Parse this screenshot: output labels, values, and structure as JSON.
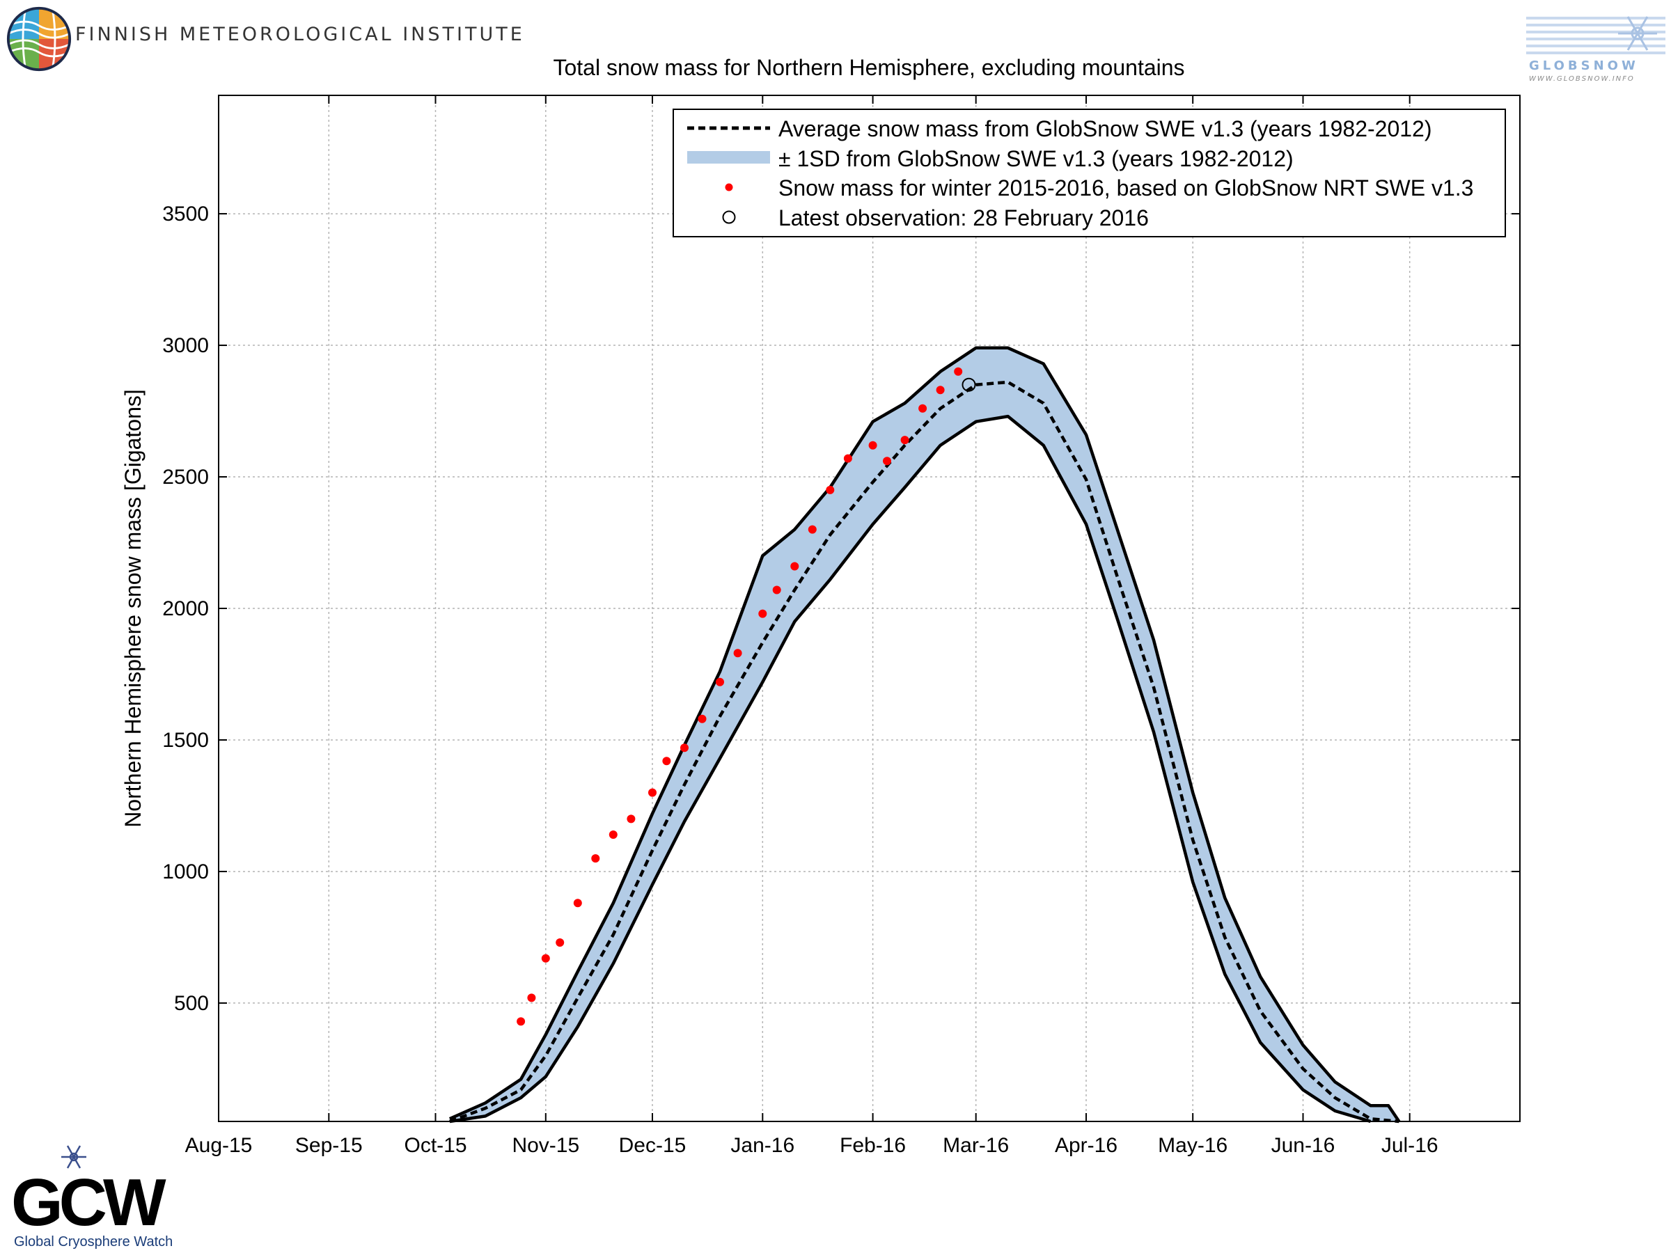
{
  "header": {
    "institute_name": "FINNISH METEOROLOGICAL INSTITUTE",
    "globsnow_wordmark": "GLOBSNOW",
    "globsnow_url": "WWW.GLOBSNOW.INFO",
    "gcw_wordmark": "GCW",
    "gcw_tagline": "Global Cryosphere Watch"
  },
  "colors": {
    "band_fill": "#b3cce6",
    "mean_line": "#000000",
    "obs_points": "#ff0000",
    "grid": "#b4b4b4"
  },
  "chart_data": {
    "type": "line",
    "title": "Total snow mass for Northern Hemisphere, excluding mountains",
    "ylabel": "Northern Hemisphere snow mass [Gigatons]",
    "xlabel": "",
    "x_ticks": [
      "Aug-15",
      "Sep-15",
      "Oct-15",
      "Nov-15",
      "Dec-15",
      "Jan-16",
      "Feb-16",
      "Mar-16",
      "Apr-16",
      "May-16",
      "Jun-16",
      "Jul-16"
    ],
    "xlim": [
      "2015-08-01",
      "2016-08-01"
    ],
    "ylim": [
      50,
      3950
    ],
    "y_ticks": [
      500,
      1000,
      1500,
      2000,
      2500,
      3000,
      3500
    ],
    "grid": true,
    "legend_position": "top-right",
    "legend": {
      "mean": "Average snow mass from GlobSnow SWE v1.3 (years 1982-2012)",
      "band": "± 1SD from GlobSnow SWE v1.3 (years 1982-2012)",
      "obs": "Snow mass for winter 2015-2016, based on GlobSnow NRT SWE v1.3",
      "latest": "Latest observation: 28 February 2016"
    },
    "series": [
      {
        "name": "Average snow mass from GlobSnow SWE v1.3 (years 1982-2012)",
        "style": "dashed",
        "points": [
          [
            "2015-10-05",
            50
          ],
          [
            "2015-10-15",
            100
          ],
          [
            "2015-10-25",
            170
          ],
          [
            "2015-11-01",
            300
          ],
          [
            "2015-11-10",
            520
          ],
          [
            "2015-11-20",
            760
          ],
          [
            "2015-12-01",
            1080
          ],
          [
            "2015-12-10",
            1330
          ],
          [
            "2015-12-20",
            1590
          ],
          [
            "2016-01-01",
            1870
          ],
          [
            "2016-01-10",
            2070
          ],
          [
            "2016-01-20",
            2280
          ],
          [
            "2016-02-01",
            2480
          ],
          [
            "2016-02-10",
            2620
          ],
          [
            "2016-02-20",
            2760
          ],
          [
            "2016-03-01",
            2850
          ],
          [
            "2016-03-10",
            2860
          ],
          [
            "2016-03-20",
            2780
          ],
          [
            "2016-04-01",
            2490
          ],
          [
            "2016-04-10",
            2110
          ],
          [
            "2016-04-20",
            1700
          ],
          [
            "2016-05-01",
            1120
          ],
          [
            "2016-05-10",
            750
          ],
          [
            "2016-05-20",
            470
          ],
          [
            "2016-06-01",
            250
          ],
          [
            "2016-06-10",
            140
          ],
          [
            "2016-06-20",
            60
          ],
          [
            "2016-06-28",
            50
          ]
        ]
      },
      {
        "name": "± 1SD from GlobSnow SWE v1.3 (years 1982-2012)",
        "style": "band",
        "upper": [
          [
            "2015-10-05",
            60
          ],
          [
            "2015-10-15",
            120
          ],
          [
            "2015-10-25",
            210
          ],
          [
            "2015-11-01",
            380
          ],
          [
            "2015-11-10",
            620
          ],
          [
            "2015-11-20",
            880
          ],
          [
            "2015-12-01",
            1220
          ],
          [
            "2015-12-10",
            1480
          ],
          [
            "2015-12-20",
            1760
          ],
          [
            "2016-01-01",
            2200
          ],
          [
            "2016-01-10",
            2300
          ],
          [
            "2016-01-20",
            2460
          ],
          [
            "2016-02-01",
            2710
          ],
          [
            "2016-02-10",
            2780
          ],
          [
            "2016-02-20",
            2900
          ],
          [
            "2016-03-01",
            2990
          ],
          [
            "2016-03-10",
            2990
          ],
          [
            "2016-03-20",
            2930
          ],
          [
            "2016-04-01",
            2660
          ],
          [
            "2016-04-10",
            2290
          ],
          [
            "2016-04-20",
            1880
          ],
          [
            "2016-05-01",
            1300
          ],
          [
            "2016-05-10",
            900
          ],
          [
            "2016-05-20",
            600
          ],
          [
            "2016-06-01",
            340
          ],
          [
            "2016-06-10",
            200
          ],
          [
            "2016-06-20",
            110
          ],
          [
            "2016-06-25",
            110
          ],
          [
            "2016-06-28",
            50
          ]
        ],
        "lower": [
          [
            "2015-10-05",
            50
          ],
          [
            "2015-10-15",
            70
          ],
          [
            "2015-10-25",
            140
          ],
          [
            "2015-11-01",
            220
          ],
          [
            "2015-11-10",
            410
          ],
          [
            "2015-11-20",
            650
          ],
          [
            "2015-12-01",
            950
          ],
          [
            "2015-12-10",
            1190
          ],
          [
            "2015-12-20",
            1430
          ],
          [
            "2016-01-01",
            1720
          ],
          [
            "2016-01-10",
            1950
          ],
          [
            "2016-01-20",
            2110
          ],
          [
            "2016-02-01",
            2320
          ],
          [
            "2016-02-10",
            2460
          ],
          [
            "2016-02-20",
            2620
          ],
          [
            "2016-03-01",
            2710
          ],
          [
            "2016-03-10",
            2730
          ],
          [
            "2016-03-20",
            2620
          ],
          [
            "2016-04-01",
            2320
          ],
          [
            "2016-04-10",
            1950
          ],
          [
            "2016-04-20",
            1530
          ],
          [
            "2016-05-01",
            960
          ],
          [
            "2016-05-10",
            610
          ],
          [
            "2016-05-20",
            350
          ],
          [
            "2016-06-01",
            170
          ],
          [
            "2016-06-10",
            90
          ],
          [
            "2016-06-20",
            50
          ]
        ]
      },
      {
        "name": "Snow mass for winter 2015-2016, based on GlobSnow NRT SWE v1.3",
        "style": "points",
        "points": [
          [
            "2015-10-25",
            430
          ],
          [
            "2015-10-28",
            520
          ],
          [
            "2015-11-01",
            670
          ],
          [
            "2015-11-05",
            730
          ],
          [
            "2015-11-10",
            880
          ],
          [
            "2015-11-15",
            1050
          ],
          [
            "2015-11-20",
            1140
          ],
          [
            "2015-11-25",
            1200
          ],
          [
            "2015-12-01",
            1300
          ],
          [
            "2015-12-05",
            1420
          ],
          [
            "2015-12-10",
            1470
          ],
          [
            "2015-12-15",
            1580
          ],
          [
            "2015-12-20",
            1720
          ],
          [
            "2015-12-25",
            1830
          ],
          [
            "2016-01-01",
            1980
          ],
          [
            "2016-01-05",
            2070
          ],
          [
            "2016-01-10",
            2160
          ],
          [
            "2016-01-15",
            2300
          ],
          [
            "2016-01-20",
            2450
          ],
          [
            "2016-01-25",
            2570
          ],
          [
            "2016-02-01",
            2620
          ],
          [
            "2016-02-05",
            2560
          ],
          [
            "2016-02-10",
            2640
          ],
          [
            "2016-02-15",
            2760
          ],
          [
            "2016-02-20",
            2830
          ],
          [
            "2016-02-25",
            2900
          ]
        ]
      },
      {
        "name": "Latest observation: 28 February 2016",
        "style": "marker",
        "points": [
          [
            "2016-02-28",
            2850
          ]
        ]
      }
    ]
  }
}
